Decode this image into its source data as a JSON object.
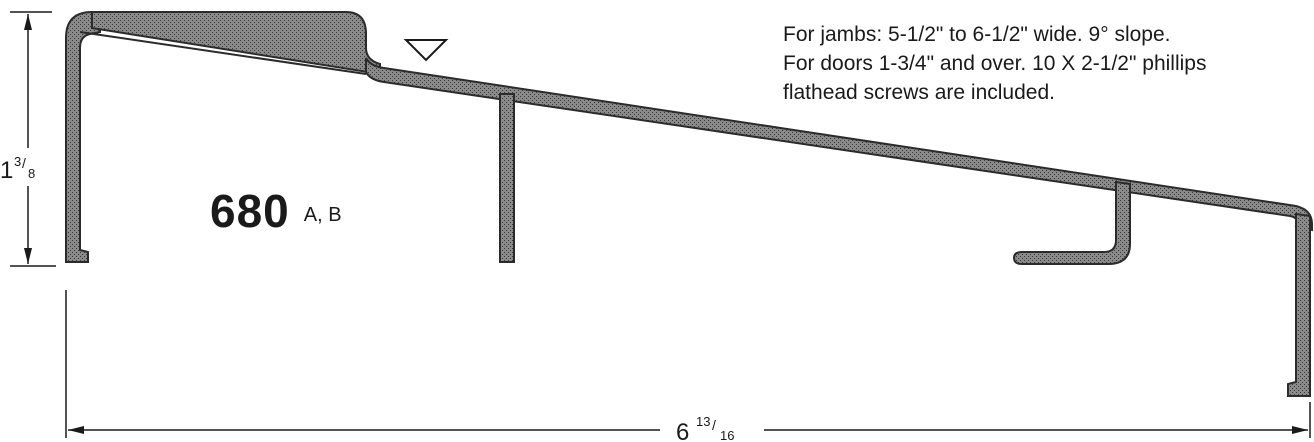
{
  "notes": {
    "line1": "For jambs: 5-1/2\" to 6-1/2\" wide.  9° slope.",
    "line2": "For doors 1-3/4\" and over.  10 X 2-1/2\" phillips",
    "line3": "flathead screws are included."
  },
  "model": {
    "number": "680",
    "variants": "A, B"
  },
  "dimensions": {
    "height_whole": "1",
    "height_frac_num": "3",
    "height_frac_den": "8",
    "width_whole": "6",
    "width_frac_num": "13",
    "width_frac_den": "16"
  },
  "colors": {
    "profile_fill": "#7a7a7a",
    "profile_stroke": "#2b2b2b",
    "line": "#1a1a1a"
  },
  "icons": {
    "water_level_marker": "triangle-down-icon"
  }
}
